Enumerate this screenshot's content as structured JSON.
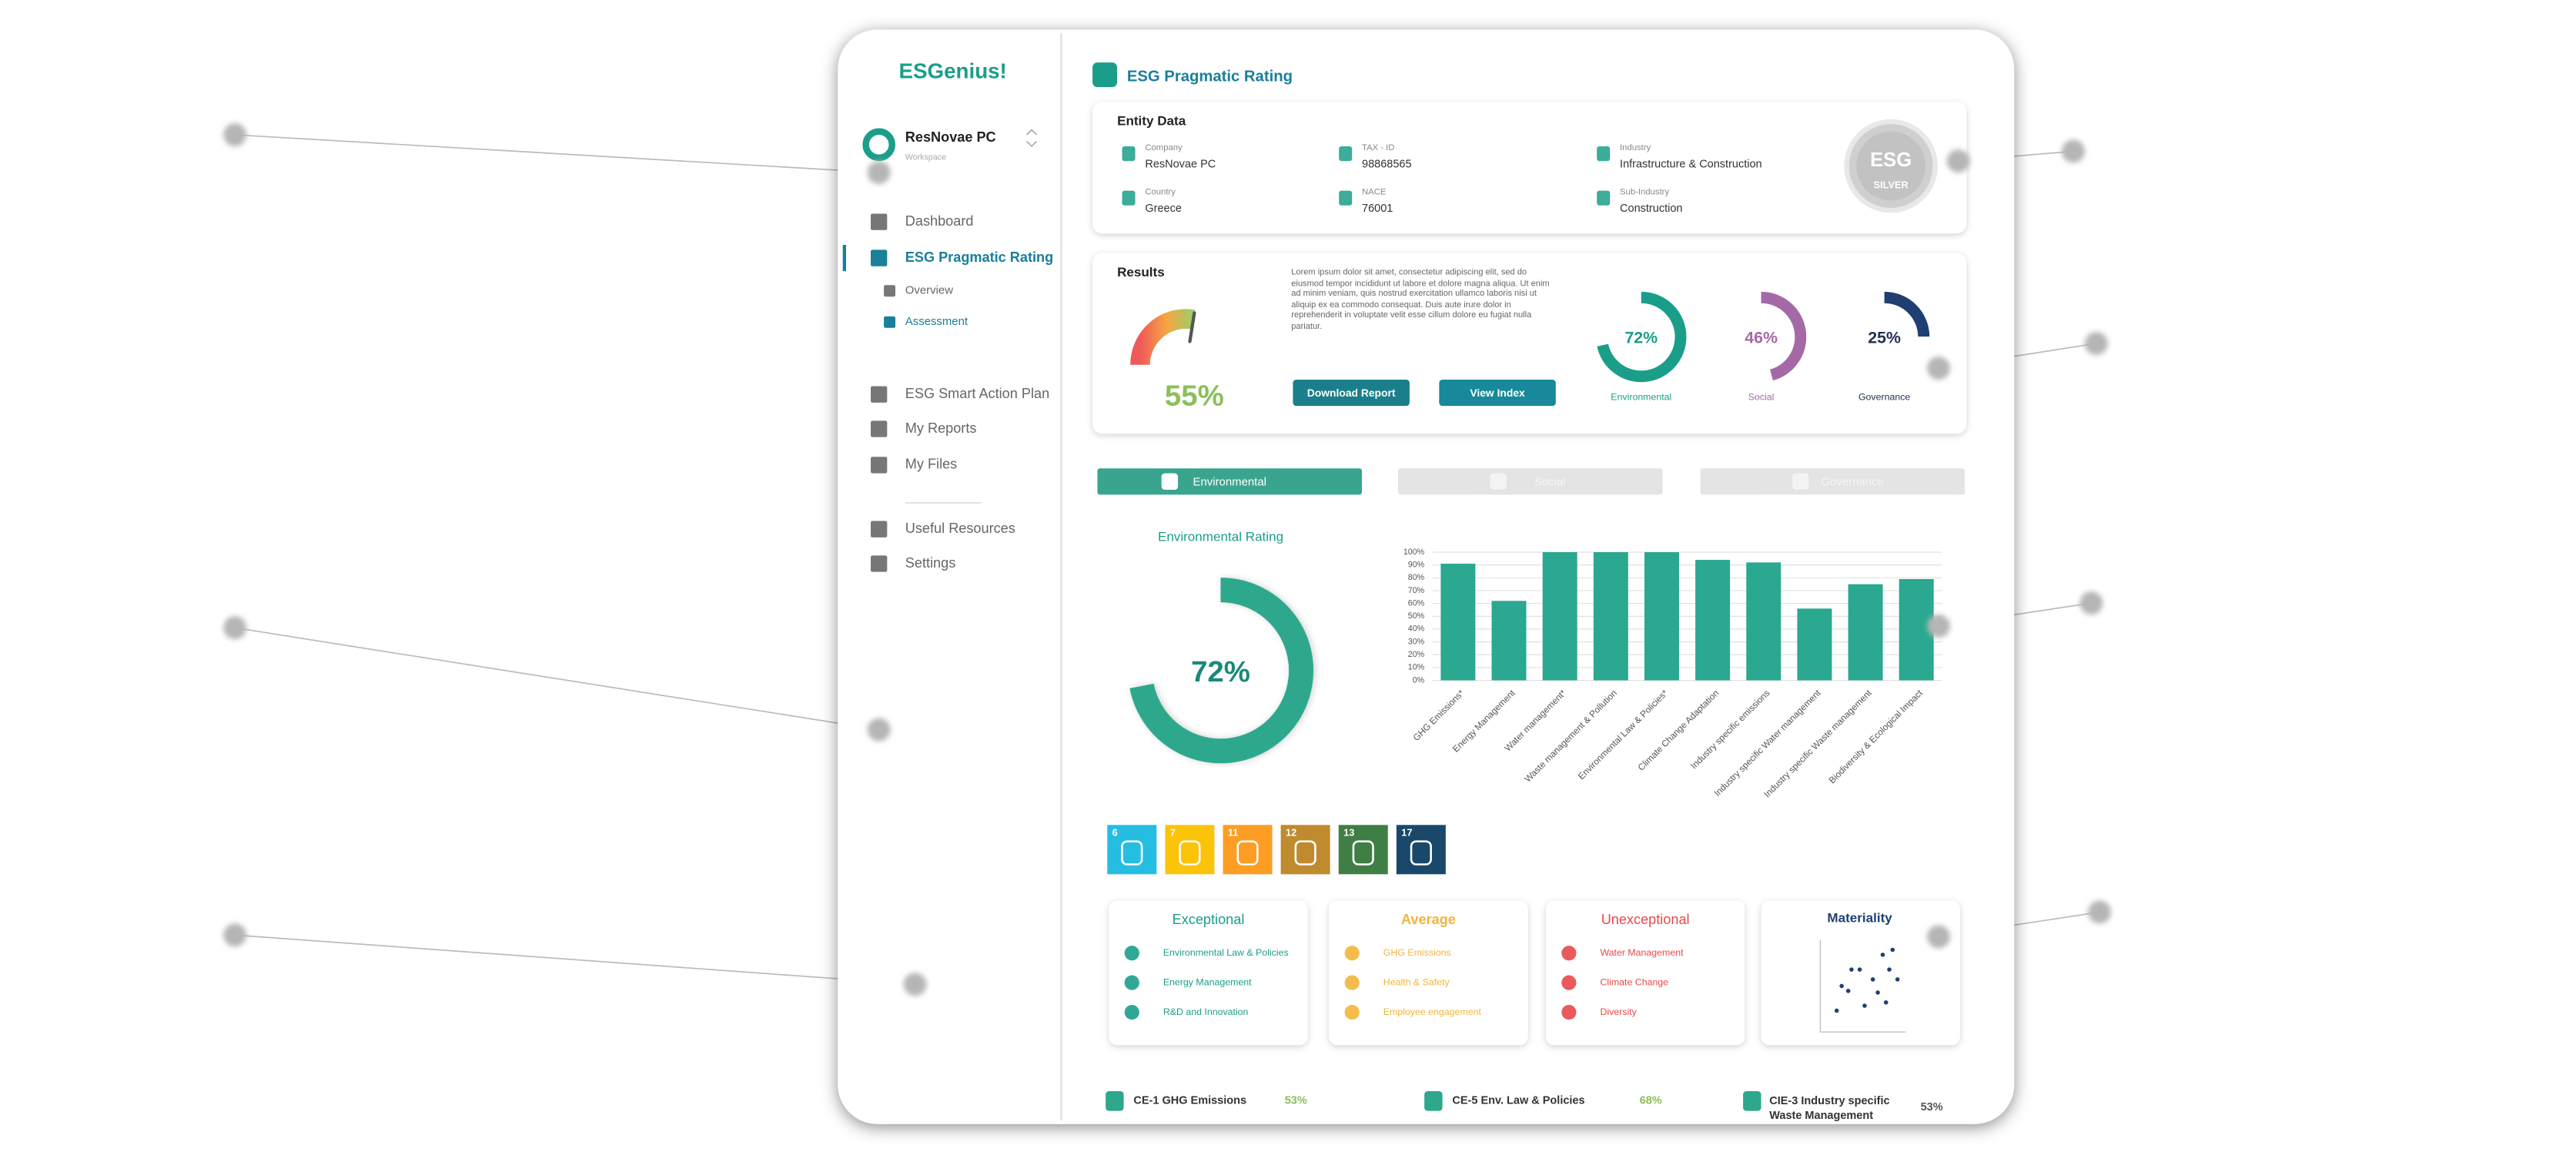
{
  "logo": "ESGenius!",
  "workspace": {
    "name": "ResNovae PC",
    "label": "Workspace"
  },
  "nav": [
    "Dashboard",
    "ESG Pragmatic Rating",
    "Overview",
    "Assessment",
    "ESG Smart Action Plan",
    "My Reports",
    "My Files",
    "Useful Resources",
    "Settings"
  ],
  "page_title": "ESG Pragmatic Rating",
  "entity": {
    "title": "Entity Data",
    "fields": [
      {
        "label": "Company",
        "value": "ResNovae PC"
      },
      {
        "label": "TAX - ID",
        "value": "98868565"
      },
      {
        "label": "Industry",
        "value": "Infrastructure & Construction"
      },
      {
        "label": "Country",
        "value": "Greece"
      },
      {
        "label": "NACE",
        "value": "76001"
      },
      {
        "label": "Sub-Industry",
        "value": "Construction"
      }
    ],
    "badge": [
      "ESG",
      "SILVER"
    ]
  },
  "results": {
    "title": "Results",
    "overall": {
      "value": 55,
      "label": "55%"
    },
    "text": "Lorem ipsum dolor sit amet, consectetur adipiscing elit, sed do eiusmod tempor incididunt ut labore et dolore magna aliqua. Ut enim ad minim veniam, quis nostrud exercitation ullamco laboris nisi ut aliquip ex ea commodo consequat. Duis aute irure dolor in reprehenderit in voluptate velit esse cillum dolore eu fugiat nulla pariatur.",
    "buttons": [
      "Download Report",
      "View Index"
    ],
    "pillars": [
      {
        "name": "Environmental",
        "value": 72,
        "label": "72%",
        "color": "#1a9e8a"
      },
      {
        "name": "Social",
        "value": 46,
        "label": "46%",
        "color": "#a569a8"
      },
      {
        "name": "Governance",
        "value": 25,
        "label": "25%",
        "color": "#1f3f73"
      }
    ]
  },
  "tabs": [
    "Environmental",
    "Social",
    "Governance"
  ],
  "rating": {
    "title": "Environmental Rating",
    "value": 72,
    "label": "72%"
  },
  "chart_data": {
    "type": "bar",
    "categories": [
      "GHG Emissions*",
      "Energy Management",
      "Water management*",
      "Waste management & Pollution",
      "Environmental Law & Policies*",
      "Climate Change Adaptation",
      "Industry specific emissions",
      "Industry specific Water management",
      "Industry specific Waste management",
      "Biodiversity & Ecological Impact"
    ],
    "values": [
      91,
      62,
      100,
      100,
      100,
      94,
      92,
      56,
      75,
      79
    ],
    "color": "#2aa890",
    "ylim": [
      0,
      100
    ],
    "grid": true,
    "yticks": [
      {
        "value": 0,
        "label": "0%"
      },
      {
        "value": 10,
        "label": "10%"
      },
      {
        "value": 20,
        "label": "20%"
      },
      {
        "value": 30,
        "label": "30%"
      },
      {
        "value": 40,
        "label": "40%"
      },
      {
        "value": 50,
        "label": "50%"
      },
      {
        "value": 60,
        "label": "60%"
      },
      {
        "value": 70,
        "label": "70%"
      },
      {
        "value": 80,
        "label": "80%"
      },
      {
        "value": 90,
        "label": "90%"
      },
      {
        "value": 100,
        "label": "100%"
      }
    ]
  },
  "sdg": [
    {
      "number": 6,
      "color": "#26bde2"
    },
    {
      "number": 7,
      "color": "#fcc30b"
    },
    {
      "number": 11,
      "color": "#fd9d24"
    },
    {
      "number": 12,
      "color": "#bf8b2e"
    },
    {
      "number": 13,
      "color": "#3f7e44"
    },
    {
      "number": 17,
      "color": "#19486a"
    }
  ],
  "groups": [
    {
      "title": "Exceptional",
      "color": "#1a9e8a",
      "items": [
        "Environmental Law & Policies",
        "Energy Management",
        "R&D and Innovation"
      ]
    },
    {
      "title": "Average",
      "color": "#f2b53a",
      "items": [
        "GHG Emissions",
        "Health & Safety",
        "Employee engagement"
      ]
    },
    {
      "title": "Unexceptional",
      "color": "#e8484b",
      "items": [
        "Water Management",
        "Climate Change",
        "Diversity"
      ]
    }
  ],
  "materiality": {
    "title": "Materiality"
  },
  "actions": [
    {
      "name": "CE-1 GHG Emissions",
      "label": "53%"
    },
    {
      "name": "CE-5 Env. Law & Policies",
      "label": "68%"
    },
    {
      "name": "CIE-3 Industry specific Waste Management",
      "label": "53%"
    }
  ]
}
